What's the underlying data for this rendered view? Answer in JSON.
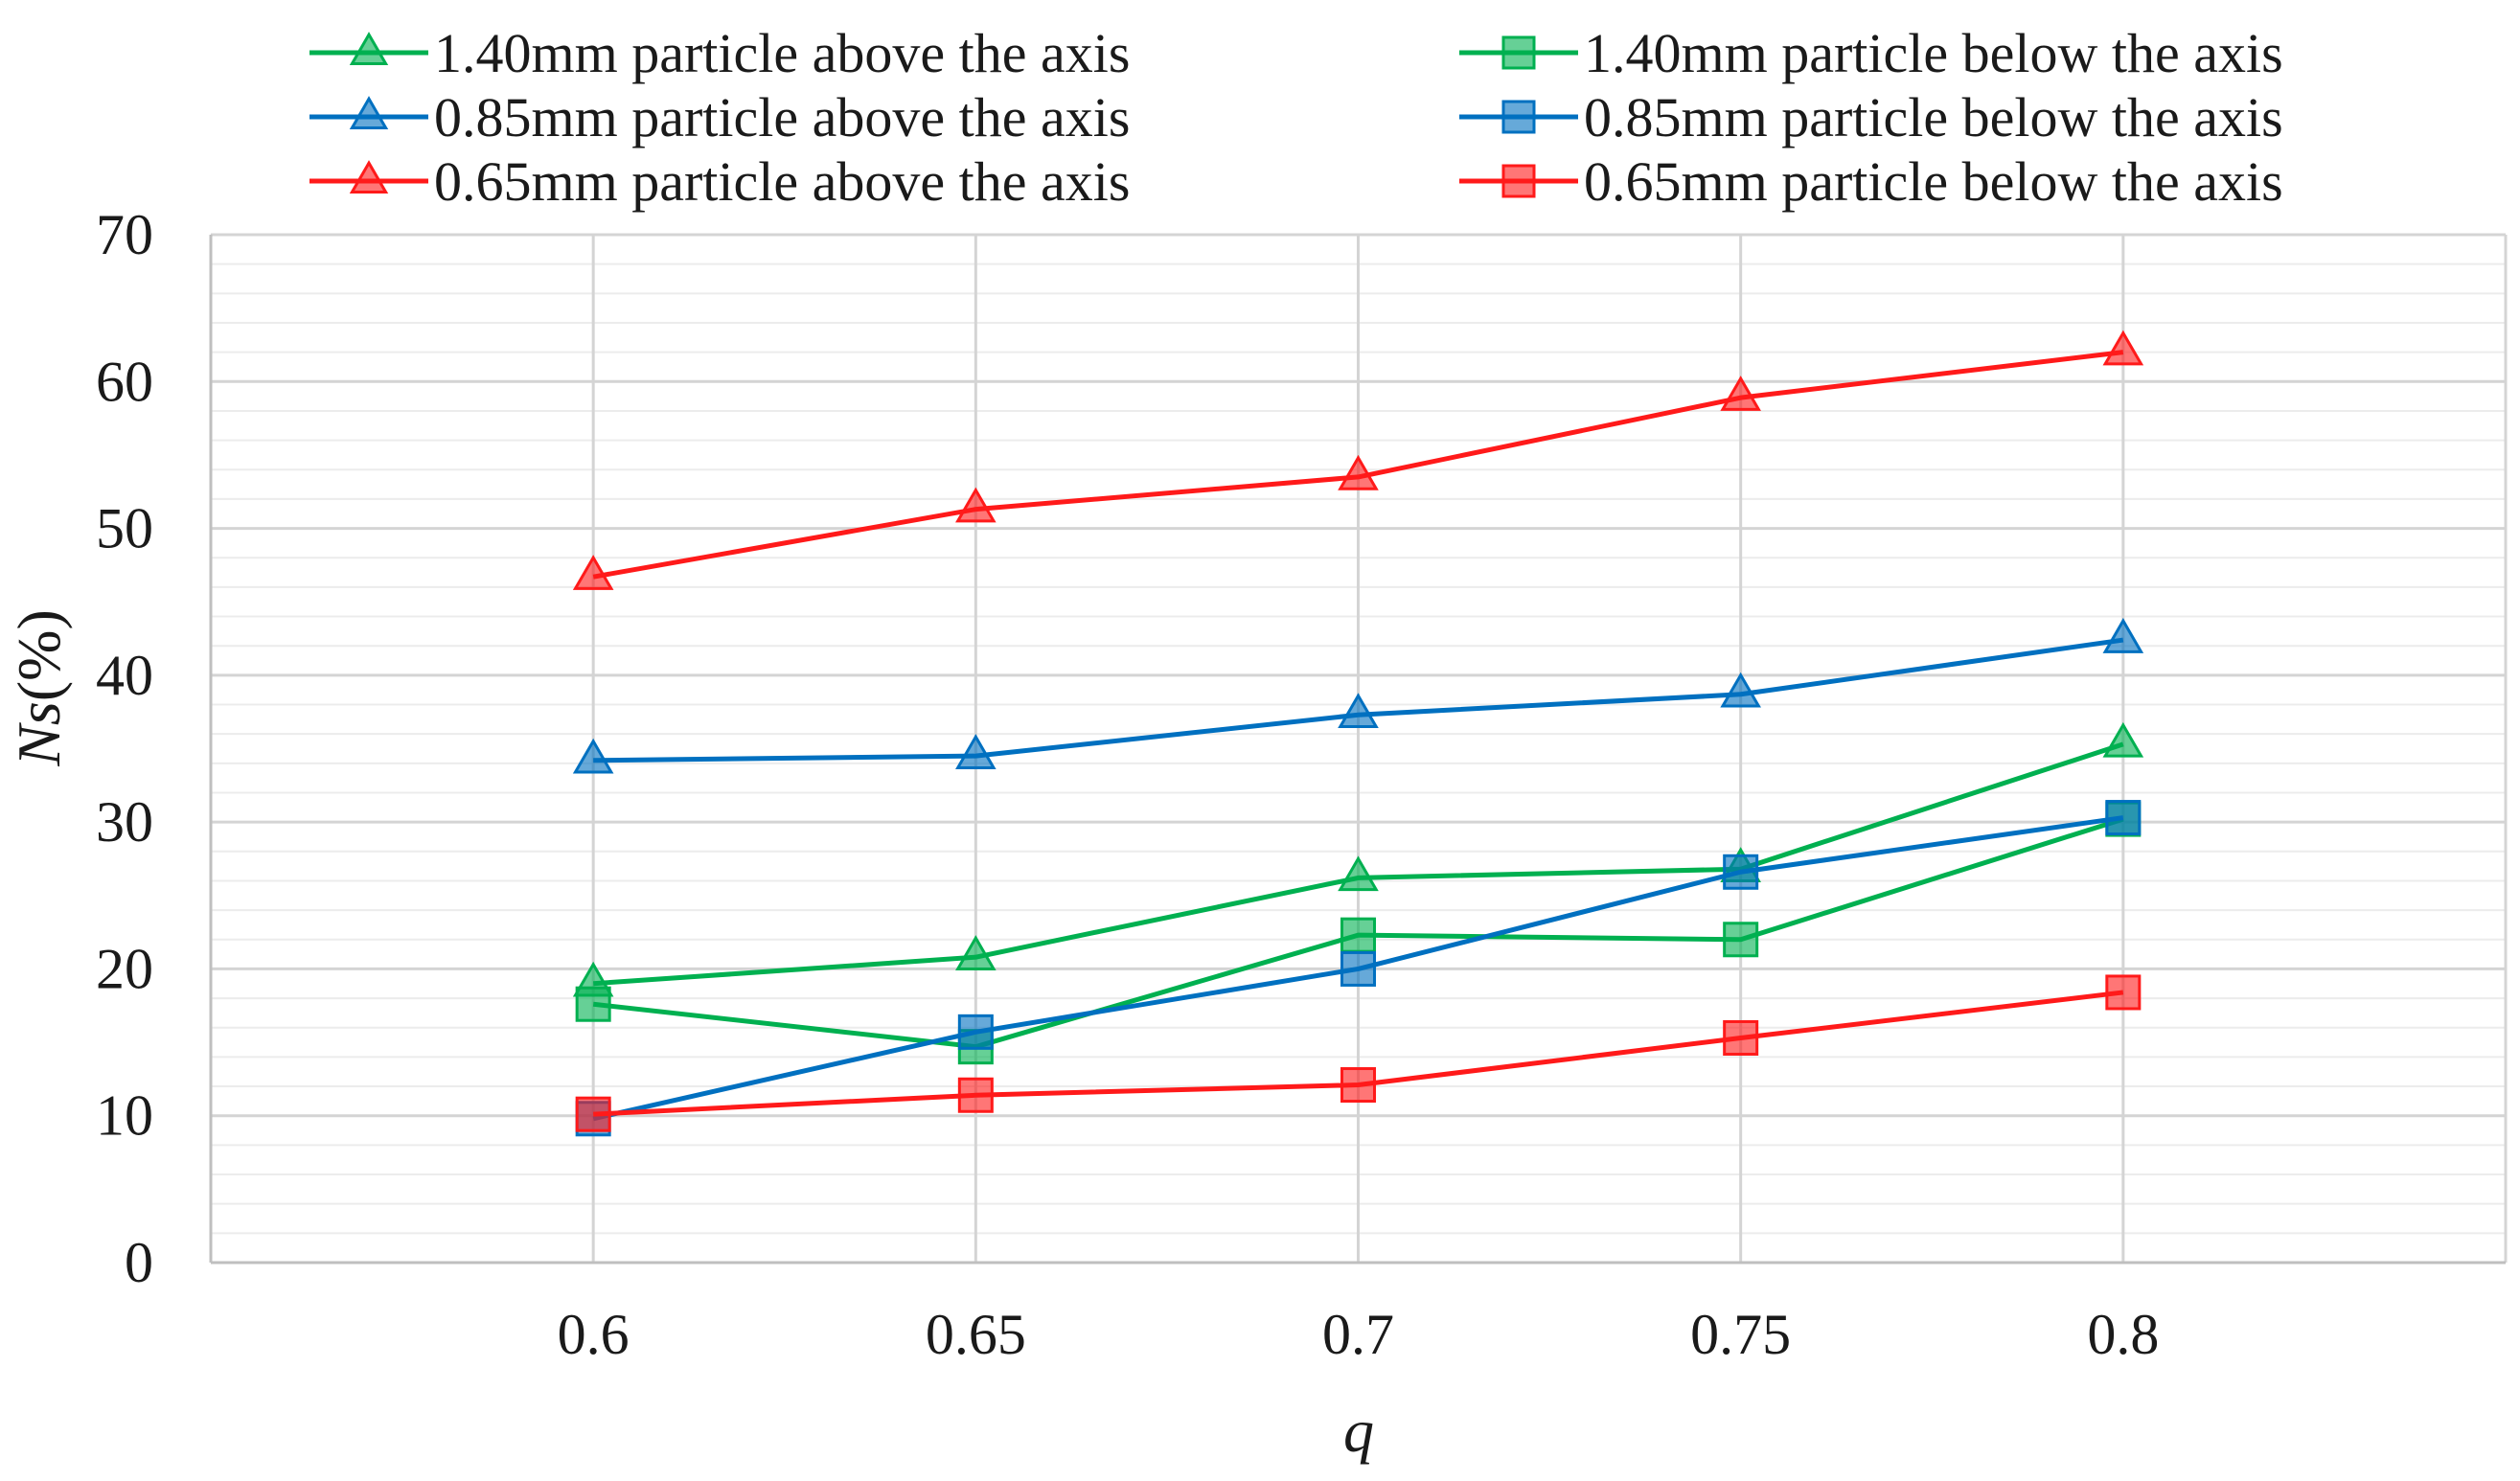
{
  "chart_data": {
    "type": "line",
    "title": "",
    "xlabel": "q",
    "ylabel_italic": "Ns",
    "ylabel_rest": "(%)",
    "categories": [
      "0.6",
      "0.65",
      "0.7",
      "0.75",
      "0.8"
    ],
    "x": [
      0.6,
      0.65,
      0.7,
      0.75,
      0.8
    ],
    "xlim": [
      0.55,
      0.85
    ],
    "ylim": [
      0,
      70
    ],
    "y_major_step": 10,
    "y_minor_step": 2,
    "y_ticks": [
      "0",
      "10",
      "20",
      "30",
      "40",
      "50",
      "60",
      "70"
    ],
    "x_ticks": [
      "0.6",
      "0.65",
      "0.7",
      "0.75",
      "0.8"
    ],
    "grid": true,
    "legend_position": "top",
    "series": [
      {
        "name": "1.40mm particle above the axis",
        "marker": "triangle",
        "color": "#00b050",
        "values": [
          19.0,
          20.8,
          26.2,
          26.8,
          35.3
        ]
      },
      {
        "name": "1.40mm particle below the axis",
        "marker": "square",
        "color": "#00b050",
        "values": [
          17.6,
          14.7,
          22.3,
          22.0,
          30.2
        ]
      },
      {
        "name": "0.85mm particle above the axis",
        "marker": "triangle",
        "color": "#0070c0",
        "values": [
          34.2,
          34.5,
          37.3,
          38.7,
          42.4
        ]
      },
      {
        "name": "0.85mm particle below the axis",
        "marker": "square",
        "color": "#0070c0",
        "values": [
          9.8,
          15.7,
          20.0,
          26.6,
          30.3
        ]
      },
      {
        "name": "0.65mm particle above the axis",
        "marker": "triangle",
        "color": "#ff1a1a",
        "values": [
          46.7,
          51.3,
          53.5,
          58.9,
          62.0
        ]
      },
      {
        "name": "0.65mm particle below the axis",
        "marker": "square",
        "color": "#ff1a1a",
        "values": [
          10.1,
          11.4,
          12.1,
          15.3,
          18.4
        ]
      }
    ]
  }
}
